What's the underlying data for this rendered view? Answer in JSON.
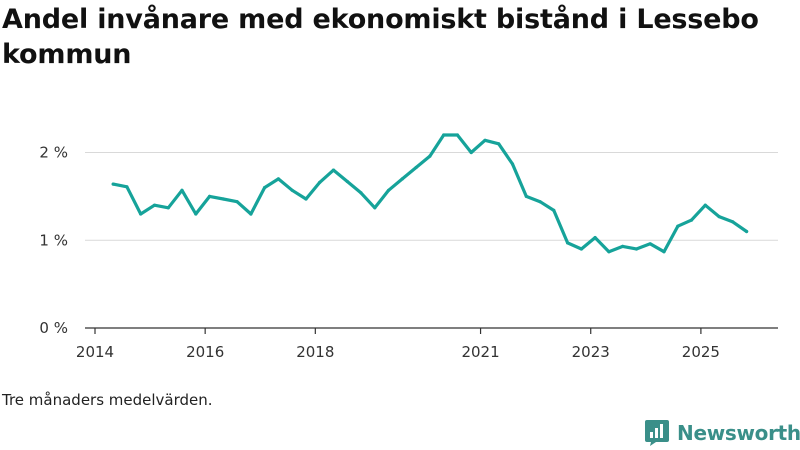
{
  "chart_data": {
    "type": "line",
    "title": "Andel invånare med ekonomiskt bistånd i Lessebo kommun",
    "xlabel": "",
    "ylabel": "",
    "ylim": [
      0,
      2.2
    ],
    "xlim": [
      2014.0,
      2026.4
    ],
    "y_ticks": [
      {
        "value": 0,
        "label": "0 %"
      },
      {
        "value": 1,
        "label": "1 %"
      },
      {
        "value": 2,
        "label": "2 %"
      }
    ],
    "x_ticks": [
      {
        "value": 2014.0,
        "label": "2014"
      },
      {
        "value": 2016.0,
        "label": "2016"
      },
      {
        "value": 2018.0,
        "label": "2018"
      },
      {
        "value": 2021.0,
        "label": "2021"
      },
      {
        "value": 2023.0,
        "label": "2023"
      },
      {
        "value": 2025.0,
        "label": "2025"
      }
    ],
    "grid": true,
    "line_color": "#16a39a",
    "series": [
      {
        "name": "Andel invånare med ekonomiskt bistånd",
        "x": [
          2014.33,
          2014.58,
          2014.83,
          2015.08,
          2015.33,
          2015.58,
          2015.83,
          2016.08,
          2016.33,
          2016.58,
          2016.83,
          2017.08,
          2017.33,
          2017.58,
          2017.83,
          2018.08,
          2018.33,
          2018.58,
          2018.83,
          2019.08,
          2019.33,
          2019.58,
          2019.83,
          2020.08,
          2020.33,
          2020.58,
          2020.83,
          2021.08,
          2021.33,
          2021.58,
          2021.83,
          2022.08,
          2022.33,
          2022.58,
          2022.83,
          2023.08,
          2023.33,
          2023.58,
          2023.83,
          2024.08,
          2024.33,
          2024.58,
          2024.83,
          2025.08,
          2025.33,
          2025.58,
          2025.83
        ],
        "values": [
          1.64,
          1.61,
          1.3,
          1.4,
          1.37,
          1.57,
          1.3,
          1.5,
          1.47,
          1.44,
          1.3,
          1.6,
          1.7,
          1.57,
          1.47,
          1.66,
          1.8,
          1.67,
          1.54,
          1.37,
          1.57,
          1.7,
          1.83,
          1.96,
          2.2,
          2.2,
          2.0,
          2.14,
          2.1,
          1.87,
          1.5,
          1.44,
          1.34,
          0.97,
          0.9,
          1.03,
          0.87,
          0.93,
          0.9,
          0.96,
          0.87,
          1.16,
          1.23,
          1.4,
          1.27,
          1.21,
          1.1
        ]
      }
    ]
  },
  "note": "Tre månaders medelvärden.",
  "brand": {
    "name": "Newsworthy",
    "color": "#3a8f89"
  }
}
